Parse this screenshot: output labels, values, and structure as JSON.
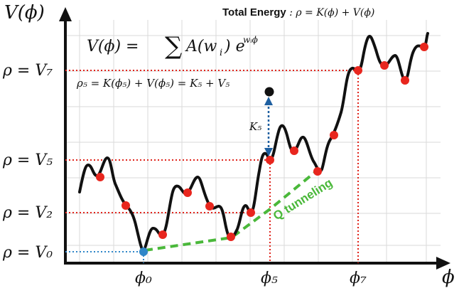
{
  "axes": {
    "y_label": "V(ϕ)",
    "x_label": "ϕ"
  },
  "header": {
    "title_bold": "Total Energy",
    "title_rest": " : ρ = K(ϕ) + V(ϕ)"
  },
  "formula": {
    "lhs": "V(ϕ) = ",
    "sum": "∑",
    "body": "A(w",
    "sub_i": "i",
    "close": ") e",
    "exp": "wᵢϕ"
  },
  "rho5_equation": "ρ₅ = K(ϕ₅) + V(ϕ₅) = K₅ + V₅",
  "kinetic_label": "K₅",
  "tunneling_label": "Q tunneling",
  "y_levels": [
    {
      "label": "ρ = V₇"
    },
    {
      "label": "ρ = V₅"
    },
    {
      "label": "ρ = V₂"
    },
    {
      "label": "ρ = V₀"
    }
  ],
  "x_ticks": [
    {
      "label": "ϕ₀"
    },
    {
      "label": "ϕ₅"
    },
    {
      "label": "ϕ₇"
    }
  ],
  "colors": {
    "curve": "#111111",
    "point": "#e8261e",
    "start_point": "#2f86c8",
    "red_guide": "#e0241c",
    "blue_guide": "#2f86c8",
    "tunnel": "#4ab83a",
    "grid": "#d9d9d9"
  }
}
